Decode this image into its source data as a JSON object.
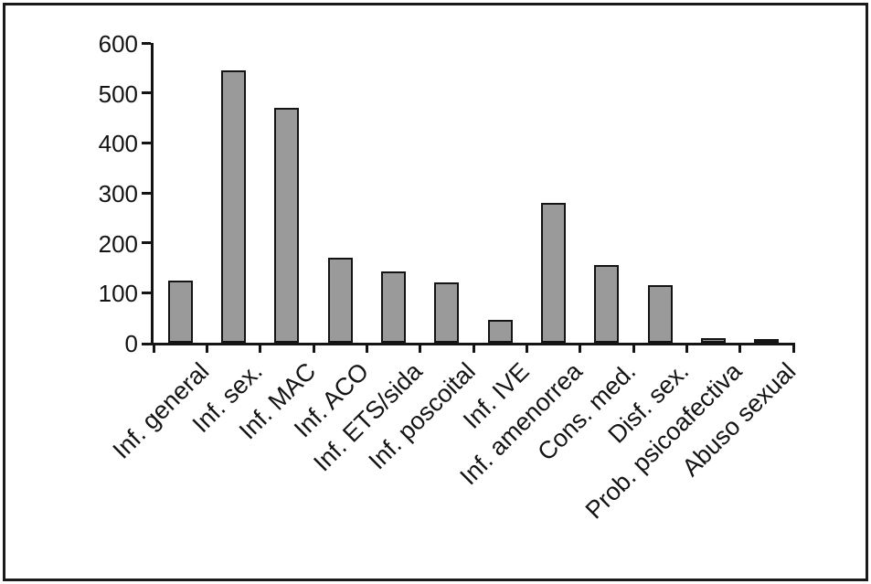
{
  "chart_data": {
    "type": "bar",
    "title": "",
    "xlabel": "",
    "ylabel": "",
    "categories": [
      "Inf. general",
      "Inf. sex.",
      "Inf. MAC",
      "Inf. ACO",
      "Inf. ETS/sida",
      "Inf. poscoital",
      "Inf. IVE",
      "Inf. amenorrea",
      "Cons. med.",
      "Disf. sex.",
      "Prob. psicoafectiva",
      "Abuso sexual"
    ],
    "values": [
      125,
      545,
      470,
      170,
      143,
      120,
      45,
      280,
      155,
      115,
      10,
      4
    ],
    "ylim": [
      0,
      600
    ],
    "yticks": [
      0,
      100,
      200,
      300,
      400,
      500,
      600
    ],
    "grid": false,
    "legend": "none",
    "x_label_rotation_deg": 45,
    "colors": {
      "bar_fill": "#9a9a9a",
      "bar_border": "#141414",
      "axis": "#141414",
      "frame_border": "#1a1a1a",
      "background": "#ffffff",
      "text": "#141414"
    }
  }
}
